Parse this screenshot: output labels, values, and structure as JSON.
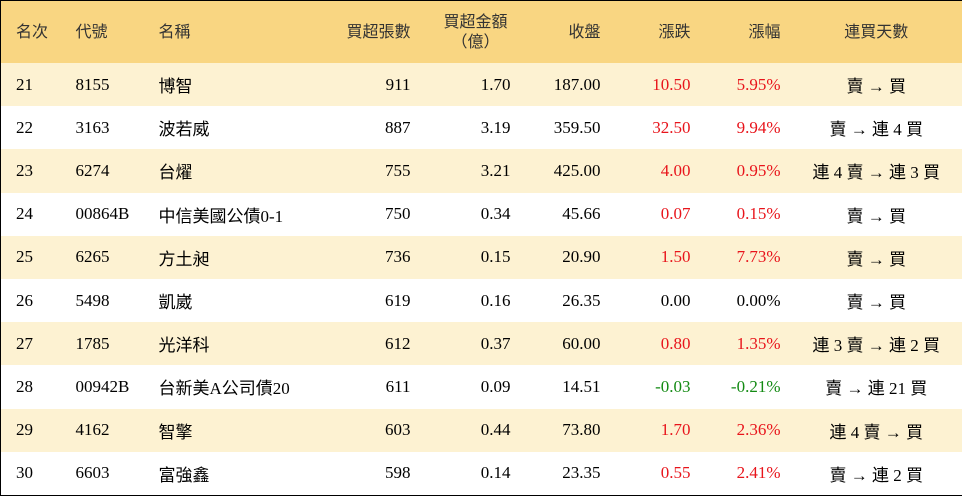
{
  "table": {
    "headers": [
      "名次",
      "代號",
      "名稱",
      "買超張數",
      [
        "買超金額",
        "（億）"
      ],
      "收盤",
      "漲跌",
      "漲幅",
      "連買天數"
    ],
    "rows": [
      [
        "21",
        "8155",
        "博智",
        "911",
        "1.70",
        "187.00",
        "10.50",
        "5.95%",
        "賣 → 買"
      ],
      [
        "22",
        "3163",
        "波若威",
        "887",
        "3.19",
        "359.50",
        "32.50",
        "9.94%",
        "賣 → 連 4 買"
      ],
      [
        "23",
        "6274",
        "台燿",
        "755",
        "3.21",
        "425.00",
        "4.00",
        "0.95%",
        "連 4 賣 → 連 3 買"
      ],
      [
        "24",
        "00864B",
        "中信美國公債0-1",
        "750",
        "0.34",
        "45.66",
        "0.07",
        "0.15%",
        "賣 → 買"
      ],
      [
        "25",
        "6265",
        "方土昶",
        "736",
        "0.15",
        "20.90",
        "1.50",
        "7.73%",
        "賣 → 買"
      ],
      [
        "26",
        "5498",
        "凱崴",
        "619",
        "0.16",
        "26.35",
        "0.00",
        "0.00%",
        "賣 → 買"
      ],
      [
        "27",
        "1785",
        "光洋科",
        "612",
        "0.37",
        "60.00",
        "0.80",
        "1.35%",
        "連 3 賣 → 連 2 買"
      ],
      [
        "28",
        "00942B",
        "台新美A公司債20",
        "611",
        "0.09",
        "14.51",
        "-0.03",
        "-0.21%",
        "賣 → 連 21 買"
      ],
      [
        "29",
        "4162",
        "智擎",
        "603",
        "0.44",
        "73.80",
        "1.70",
        "2.36%",
        "連 4 賣 → 買"
      ],
      [
        "30",
        "6603",
        "富強鑫",
        "598",
        "0.14",
        "23.35",
        "0.55",
        "2.41%",
        "賣 → 連 2 買"
      ]
    ],
    "change_colors": [
      "#e8141b",
      "#e8141b",
      "#e8141b",
      "#e8141b",
      "#e8141b",
      "#000000",
      "#e8141b",
      "#138a13",
      "#e8141b",
      "#e8141b"
    ]
  }
}
